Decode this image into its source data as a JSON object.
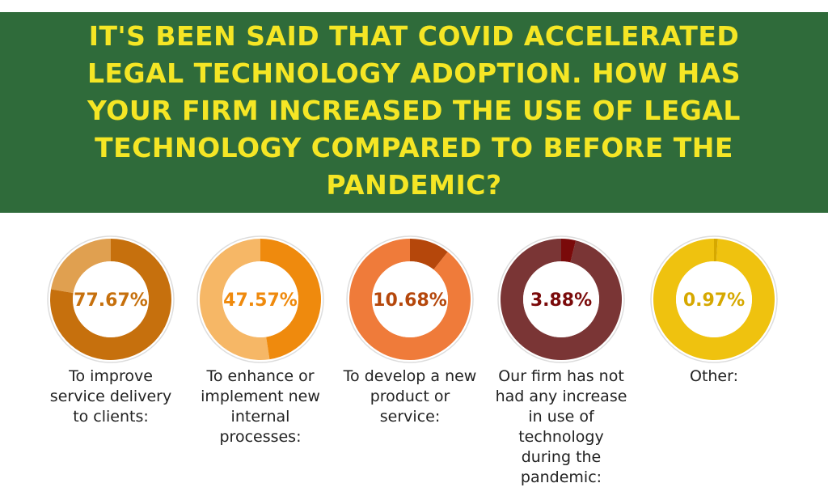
{
  "title": "IT'S BEEN SAID THAT COVID ACCELERATED LEGAL TECHNOLOGY ADOPTION. HOW HAS YOUR FIRM INCREASED THE USE OF LEGAL TECHNOLOGY COMPARED TO BEFORE THE PANDEMIC?",
  "chart_data": [
    {
      "type": "donut",
      "label": "To improve service delivery to clients:",
      "value": 77.67,
      "value_label": "77.67%",
      "color": "#c6700d",
      "rest_color": "#e0a050"
    },
    {
      "type": "donut",
      "label": "To enhance or implement new internal processes:",
      "value": 47.57,
      "value_label": "47.57%",
      "color": "#ef8a0d",
      "rest_color": "#f6b766"
    },
    {
      "type": "donut",
      "label": "To develop a new product or service:",
      "value": 10.68,
      "value_label": "10.68%",
      "color": "#b5470b",
      "rest_color": "#ef7b3a"
    },
    {
      "type": "donut",
      "label": "Our firm has not had any increase in use of technology during the pandemic:",
      "value": 3.88,
      "value_label": "3.88%",
      "color": "#7a0a0a",
      "rest_color": "#7a3535"
    },
    {
      "type": "donut",
      "label": "Other:",
      "value": 0.97,
      "value_label": "0.97%",
      "color": "#d6a800",
      "rest_color": "#efc20f"
    }
  ]
}
